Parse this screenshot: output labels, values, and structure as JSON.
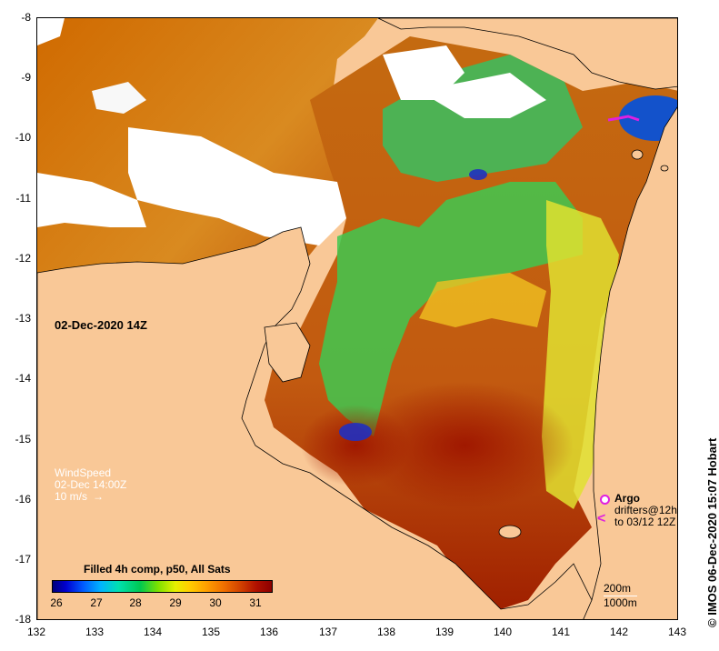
{
  "map": {
    "x_ticks": [
      "132",
      "133",
      "134",
      "135",
      "136",
      "137",
      "138",
      "139",
      "140",
      "141",
      "142",
      "143"
    ],
    "y_ticks": [
      "-8",
      "-9",
      "-10",
      "-11",
      "-12",
      "-13",
      "-14",
      "-15",
      "-16",
      "-17",
      "-18"
    ],
    "composite_time": "02-Dec-2020 14Z",
    "colors": {
      "land": "#f9c897",
      "cloud": "#ffffff",
      "warm": "#8c0000",
      "cool": "#00007a"
    }
  },
  "wind": {
    "title": "WindSpeed",
    "time": "02-Dec 14:00Z",
    "scale": "10 m/s"
  },
  "legend": {
    "title": "Filled 4h comp, p50, All Sats",
    "ticks": [
      "26",
      "27",
      "28",
      "29",
      "30",
      "31"
    ]
  },
  "argo": {
    "label": "Argo",
    "drifter_line1": "drifters@12h",
    "drifter_line2": "to 03/12 12Z"
  },
  "depth": {
    "contour1": "200m",
    "contour2": "1000m"
  },
  "credit": "IMOS 06-Dec-2020 15:07 Hobart",
  "credit_symbol": "©"
}
